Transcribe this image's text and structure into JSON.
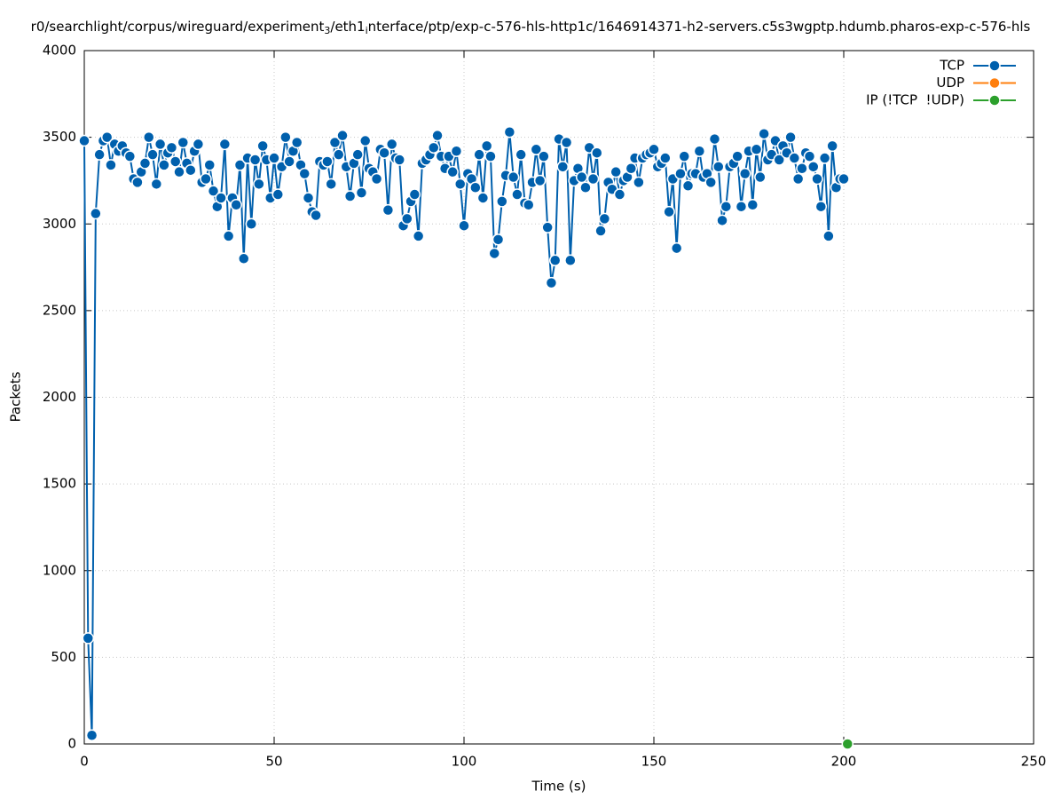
{
  "chart_data": {
    "type": "line",
    "title_parts": [
      {
        "text": "r0/searchlight/corpus/wireguard/experiment",
        "sub": false
      },
      {
        "text": "3",
        "sub": true
      },
      {
        "text": "/eth1",
        "sub": false
      },
      {
        "text": "i",
        "sub": true
      },
      {
        "text": "nterface/ptp/exp-c-576-hls-http1c/1646914371-h2-servers.c5s3wgptp.hdumb.pharos-exp-c-576-hls",
        "sub": false
      }
    ],
    "x_label": "Time (s)",
    "y_label": "Packets",
    "xlim": [
      0,
      250
    ],
    "xticks": [
      0,
      50,
      100,
      150,
      200,
      250
    ],
    "ylim": [
      0,
      4000
    ],
    "yticks": [
      0,
      500,
      1000,
      1500,
      2000,
      2500,
      3000,
      3500,
      4000
    ],
    "grid": true,
    "legend": "top-right",
    "series": [
      {
        "name": "TCP",
        "color": "#0060ad",
        "x": [
          0,
          1,
          2,
          3,
          4,
          5,
          6,
          7,
          8,
          9,
          10,
          11,
          12,
          13,
          14,
          15,
          16,
          17,
          18,
          19,
          20,
          21,
          22,
          23,
          24,
          25,
          26,
          27,
          28,
          29,
          30,
          31,
          32,
          33,
          34,
          35,
          36,
          37,
          38,
          39,
          40,
          41,
          42,
          43,
          44,
          45,
          46,
          47,
          48,
          49,
          50,
          51,
          52,
          53,
          54,
          55,
          56,
          57,
          58,
          59,
          60,
          61,
          62,
          63,
          64,
          65,
          66,
          67,
          68,
          69,
          70,
          71,
          72,
          73,
          74,
          75,
          76,
          77,
          78,
          79,
          80,
          81,
          82,
          83,
          84,
          85,
          86,
          87,
          88,
          89,
          90,
          91,
          92,
          93,
          94,
          95,
          96,
          97,
          98,
          99,
          100,
          101,
          102,
          103,
          104,
          105,
          106,
          107,
          108,
          109,
          110,
          111,
          112,
          113,
          114,
          115,
          116,
          117,
          118,
          119,
          120,
          121,
          122,
          123,
          124,
          125,
          126,
          127,
          128,
          129,
          130,
          131,
          132,
          133,
          134,
          135,
          136,
          137,
          138,
          139,
          140,
          141,
          142,
          143,
          144,
          145,
          146,
          147,
          148,
          149,
          150,
          151,
          152,
          153,
          154,
          155,
          156,
          157,
          158,
          159,
          160,
          161,
          162,
          163,
          164,
          165,
          166,
          167,
          168,
          169,
          170,
          171,
          172,
          173,
          174,
          175,
          176,
          177,
          178,
          179,
          180,
          181,
          182,
          183,
          184,
          185,
          186,
          187,
          188,
          189,
          190,
          191,
          192,
          193,
          194,
          195,
          196,
          197,
          198,
          199,
          200
        ],
        "values": [
          3480,
          610,
          50,
          3060,
          3400,
          3480,
          3500,
          3340,
          3460,
          3420,
          3450,
          3410,
          3390,
          3260,
          3240,
          3300,
          3350,
          3500,
          3400,
          3230,
          3460,
          3340,
          3410,
          3440,
          3360,
          3300,
          3470,
          3350,
          3310,
          3420,
          3460,
          3240,
          3260,
          3340,
          3190,
          3100,
          3150,
          3460,
          2930,
          3150,
          3110,
          3340,
          2800,
          3380,
          3000,
          3370,
          3230,
          3450,
          3370,
          3150,
          3380,
          3170,
          3330,
          3500,
          3360,
          3420,
          3470,
          3340,
          3290,
          3150,
          3070,
          3050,
          3360,
          3340,
          3360,
          3230,
          3470,
          3400,
          3510,
          3330,
          3160,
          3350,
          3400,
          3180,
          3480,
          3320,
          3300,
          3260,
          3430,
          3410,
          3080,
          3460,
          3380,
          3370,
          2990,
          3030,
          3130,
          3170,
          2930,
          3350,
          3370,
          3400,
          3440,
          3510,
          3390,
          3320,
          3390,
          3300,
          3420,
          3230,
          2990,
          3290,
          3260,
          3210,
          3400,
          3150,
          3450,
          3390,
          2830,
          2910,
          3130,
          3280,
          3530,
          3270,
          3170,
          3400,
          3120,
          3110,
          3240,
          3430,
          3250,
          3390,
          2980,
          2660,
          2790,
          3490,
          3330,
          3470,
          2790,
          3250,
          3320,
          3270,
          3210,
          3440,
          3260,
          3410,
          2960,
          3030,
          3240,
          3200,
          3300,
          3170,
          3250,
          3270,
          3320,
          3380,
          3240,
          3380,
          3400,
          3410,
          3430,
          3330,
          3350,
          3380,
          3070,
          3260,
          2860,
          3290,
          3390,
          3220,
          3290,
          3290,
          3420,
          3270,
          3290,
          3240,
          3490,
          3330,
          3020,
          3100,
          3330,
          3350,
          3390,
          3100,
          3290,
          3420,
          3110,
          3430,
          3270,
          3520,
          3370,
          3400,
          3480,
          3370,
          3450,
          3410,
          3500,
          3380,
          3260,
          3320,
          3410,
          3390,
          3330,
          3260,
          3100,
          3380,
          2930,
          3450,
          3210,
          3260,
          3260
        ]
      },
      {
        "name": "UDP",
        "color": "#ff7f0e",
        "x": [],
        "values": []
      },
      {
        "name": "IP (!TCP  !UDP)",
        "color": "#2ca02c",
        "x": [
          201
        ],
        "values": [
          0
        ]
      }
    ]
  }
}
